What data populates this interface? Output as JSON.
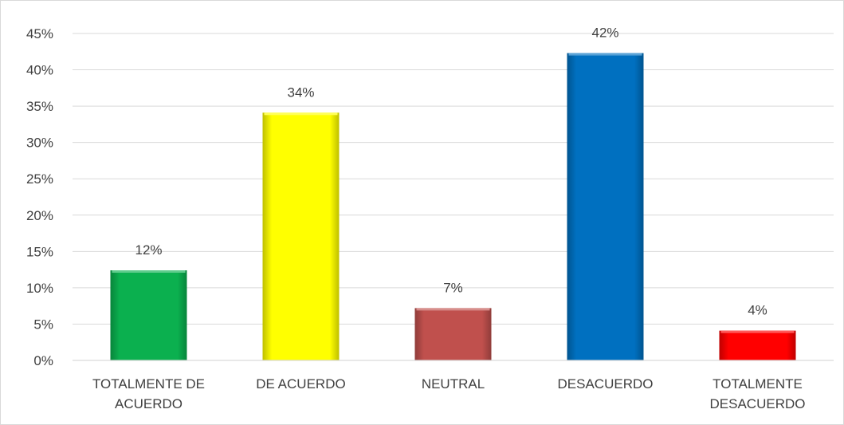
{
  "chart_data": {
    "type": "bar",
    "categories": [
      [
        "TOTALMENTE DE",
        "ACUERDO"
      ],
      [
        "DE ACUERDO"
      ],
      [
        "NEUTRAL"
      ],
      [
        "DESACUERDO"
      ],
      [
        "TOTALMENTE",
        "DESACUERDO"
      ]
    ],
    "values": [
      12.4,
      34.1,
      7.2,
      42.3,
      4.1
    ],
    "data_labels": [
      "12%",
      "34%",
      "7%",
      "42%",
      "4%"
    ],
    "bar_colors": [
      "#0bb04f",
      "#ffff00",
      "#c0504d",
      "#0070c0",
      "#ff0000"
    ],
    "ylim": [
      0,
      45
    ],
    "yticks": [
      0,
      5,
      10,
      15,
      20,
      25,
      30,
      35,
      40,
      45
    ],
    "ytick_labels": [
      "0%",
      "5%",
      "10%",
      "15%",
      "20%",
      "25%",
      "30%",
      "35%",
      "40%",
      "45%"
    ],
    "grid": true,
    "legend": "none"
  }
}
